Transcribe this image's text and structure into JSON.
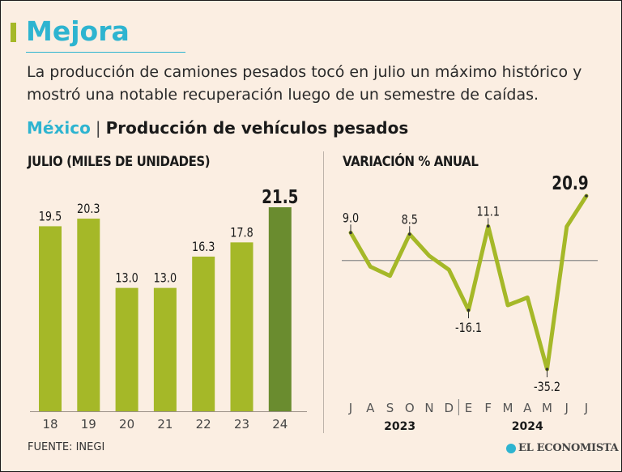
{
  "headline": "Mejora",
  "lede": "La producción de camiones pesados tocó en julio un máximo histórico y mostró una notable recuperación luego de un semestre de caídas.",
  "subhead": {
    "country": "México",
    "separator": "|",
    "topic": "Producción de vehículos pesados"
  },
  "source": "FUENTE: INEGI",
  "brand": "EL ECONOMISTA",
  "colors": {
    "bar": "#a5b828",
    "bar_highlight": "#6a8c2f",
    "line": "#a5b828",
    "accent": "#2eb4d0",
    "text": "#1a1a1a"
  },
  "chart_data": [
    {
      "type": "bar",
      "title": "JULIO (MILES DE UNIDADES)",
      "categories": [
        "18",
        "19",
        "20",
        "21",
        "22",
        "23",
        "24"
      ],
      "values": [
        19.5,
        20.3,
        13.0,
        13.0,
        16.3,
        17.8,
        21.5
      ],
      "value_labels": [
        "19.5",
        "20.3",
        "13.0",
        "13.0",
        "16.3",
        "17.8",
        "21.5"
      ],
      "highlight_index": 6,
      "ylim": [
        0,
        21.5
      ],
      "xlabel": "",
      "ylabel": "Miles de unidades"
    },
    {
      "type": "line",
      "title": "VARIACIÓN % ANUAL",
      "x": [
        "J",
        "A",
        "S",
        "O",
        "N",
        "D",
        "E",
        "F",
        "M",
        "A",
        "M",
        "J",
        "J"
      ],
      "values": [
        9.0,
        -2.0,
        -5.0,
        8.5,
        1.5,
        -3.0,
        -16.1,
        11.1,
        -14.5,
        -12.0,
        -35.2,
        11.0,
        20.9
      ],
      "labels": [
        {
          "index": 0,
          "text": "9.0"
        },
        {
          "index": 3,
          "text": "8.5"
        },
        {
          "index": 6,
          "text": "-16.1"
        },
        {
          "index": 7,
          "text": "11.1"
        },
        {
          "index": 10,
          "text": "-35.2"
        },
        {
          "index": 12,
          "text": "20.9"
        }
      ],
      "year_groups": [
        {
          "label": "2023",
          "start": 0,
          "end": 5
        },
        {
          "label": "2024",
          "start": 6,
          "end": 12
        }
      ],
      "zero_line": true,
      "ylim": [
        -35.2,
        20.9
      ]
    }
  ]
}
